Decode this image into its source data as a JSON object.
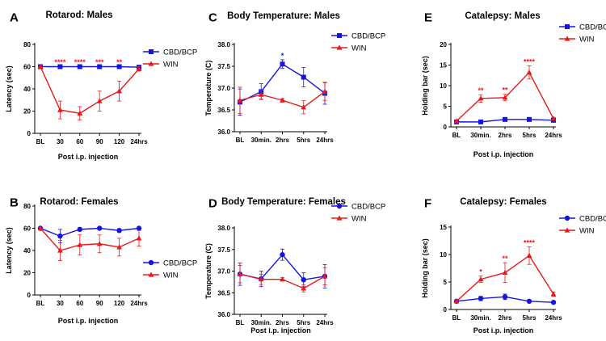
{
  "colors": {
    "blue": "#1515e0",
    "red": "#e8191c",
    "axis": "#000000"
  },
  "panels": [
    {
      "letter": "A",
      "title": "Rotarod: Males",
      "chart_data": {
        "type": "line",
        "categories": [
          "BL",
          "30",
          "60",
          "90",
          "120",
          "24hrs"
        ],
        "xlabel": "Post i.p. injection",
        "ylabel": "Latency (sec)",
        "ylim": [
          0,
          80
        ],
        "yticks": [
          "0",
          "20",
          "40",
          "60",
          "80"
        ],
        "legend_position": "right",
        "series": [
          {
            "name": "CBD/BCP",
            "marker": "square",
            "color": "#1515e0",
            "values": [
              60,
              60,
              60,
              60,
              60,
              59.5
            ],
            "err": [
              0.3,
              0.3,
              0.3,
              0.3,
              0.3,
              0.5
            ]
          },
          {
            "name": "WIN",
            "marker": "triangle",
            "color": "#e8191c",
            "values": [
              60,
              21,
              18,
              29,
              38,
              58
            ],
            "err": [
              0.3,
              8,
              6,
              9,
              9,
              2
            ]
          }
        ],
        "annotations": [
          {
            "index": 1,
            "text": "****"
          },
          {
            "index": 2,
            "text": "****"
          },
          {
            "index": 3,
            "text": "***"
          },
          {
            "index": 4,
            "text": "**"
          }
        ]
      }
    },
    {
      "letter": "B",
      "title": "Rotarod: Females",
      "chart_data": {
        "type": "line",
        "categories": [
          "BL",
          "30",
          "60",
          "90",
          "120",
          "24hrs"
        ],
        "xlabel": "Post i.p. injection",
        "ylabel": "Latency (sec)",
        "ylim": [
          0,
          80
        ],
        "yticks": [
          "0",
          "20",
          "40",
          "60",
          "80"
        ],
        "legend_position": "bottom-right",
        "series": [
          {
            "name": "CBD/BCP",
            "marker": "circle",
            "color": "#1515e0",
            "values": [
              60,
              53,
              59,
              60,
              58,
              60
            ],
            "err": [
              0.5,
              6,
              1.5,
              1,
              1.5,
              1
            ]
          },
          {
            "name": "WIN",
            "marker": "triangle",
            "color": "#e8191c",
            "values": [
              60,
              40,
              45,
              46,
              43,
              51
            ],
            "err": [
              0.5,
              9,
              9,
              8,
              8,
              7
            ]
          }
        ],
        "annotations": []
      }
    },
    {
      "letter": "C",
      "title": "Body Temperature: Males",
      "chart_data": {
        "type": "line",
        "categories": [
          "BL",
          "30min.",
          "2hrs",
          "5hrs",
          "24hrs"
        ],
        "xlabel": "",
        "ylabel": "Temperature (C)",
        "ylim": [
          36.0,
          38.0
        ],
        "yticks": [
          "36.0",
          "36.5",
          "37.0",
          "37.5",
          "38.0"
        ],
        "legend_position": "top-right",
        "series": [
          {
            "name": "CBD/BCP",
            "marker": "square",
            "color": "#1515e0",
            "values": [
              36.68,
              36.92,
              37.55,
              37.25,
              36.88
            ],
            "err": [
              0.3,
              0.18,
              0.1,
              0.22,
              0.25
            ]
          },
          {
            "name": "WIN",
            "marker": "triangle",
            "color": "#e8191c",
            "values": [
              36.72,
              36.85,
              36.72,
              36.56,
              36.92
            ],
            "err": [
              0.3,
              0.1,
              0.04,
              0.15,
              0.2
            ]
          }
        ],
        "annotations": [
          {
            "index": 2,
            "text": "*"
          }
        ]
      }
    },
    {
      "letter": "D",
      "title": "Body Temperature: Females",
      "chart_data": {
        "type": "line",
        "categories": [
          "BL",
          "30min.",
          "2hrs",
          "5hrs",
          "24hrs"
        ],
        "xlabel": "Post i.p. injection",
        "ylabel": "Temperature (C)",
        "ylim": [
          36.0,
          38.0
        ],
        "yticks": [
          "36.0",
          "36.5",
          "37.0",
          "37.5",
          "38.0"
        ],
        "legend_position": "top-right",
        "series": [
          {
            "name": "CBD/BCP",
            "marker": "circle",
            "color": "#1515e0",
            "values": [
              36.93,
              36.82,
              37.38,
              36.8,
              36.88
            ],
            "err": [
              0.26,
              0.18,
              0.13,
              0.16,
              0.27
            ]
          },
          {
            "name": "WIN",
            "marker": "triangle",
            "color": "#e8191c",
            "values": [
              36.93,
              36.81,
              36.81,
              36.6,
              36.88
            ],
            "err": [
              0.2,
              0.12,
              0.04,
              0.08,
              0.2
            ]
          }
        ],
        "annotations": []
      }
    },
    {
      "letter": "E",
      "title": "Catalepsy: Males",
      "chart_data": {
        "type": "line",
        "categories": [
          "BL",
          "30min.",
          "2hrs",
          "5hrs",
          "24hrs"
        ],
        "xlabel": "Post i.p. injection",
        "ylabel": "Holding bar (sec)",
        "ylim": [
          0,
          20
        ],
        "yticks": [
          "0",
          "5",
          "10",
          "15",
          "20"
        ],
        "legend_position": "top-right",
        "series": [
          {
            "name": "CBD/BCP",
            "marker": "square",
            "color": "#1515e0",
            "values": [
              1.2,
              1.2,
              1.8,
              1.8,
              1.6
            ],
            "err": [
              0.3,
              0.3,
              0.3,
              0.3,
              0.3
            ]
          },
          {
            "name": "WIN",
            "marker": "triangle",
            "color": "#e8191c",
            "values": [
              1.4,
              6.9,
              7.1,
              13.2,
              2.0
            ],
            "err": [
              0.3,
              0.9,
              0.8,
              1.6,
              0.3
            ]
          }
        ],
        "annotations": [
          {
            "index": 1,
            "text": "**"
          },
          {
            "index": 2,
            "text": "**"
          },
          {
            "index": 3,
            "text": "****"
          }
        ]
      }
    },
    {
      "letter": "F",
      "title": "Catalepsy: Females",
      "chart_data": {
        "type": "line",
        "categories": [
          "BL",
          "30min.",
          "2hrs",
          "5hrs",
          "24hrs"
        ],
        "xlabel": "Post i.p. injection",
        "ylabel": "Holding bar (sec)",
        "ylim": [
          0,
          15
        ],
        "yticks": [
          "0",
          "5",
          "10",
          "15"
        ],
        "legend_position": "top-right",
        "series": [
          {
            "name": "CBD/BCP",
            "marker": "circle",
            "color": "#1515e0",
            "values": [
              1.5,
              2.0,
              2.3,
              1.5,
              1.3
            ],
            "err": [
              0.2,
              0.4,
              0.5,
              0.2,
              0.2
            ]
          },
          {
            "name": "WIN",
            "marker": "triangle",
            "color": "#e8191c",
            "values": [
              1.5,
              5.5,
              6.7,
              9.8,
              2.8
            ],
            "err": [
              0.2,
              0.6,
              1.8,
              1.6,
              0.4
            ]
          }
        ],
        "annotations": [
          {
            "index": 1,
            "text": "*"
          },
          {
            "index": 2,
            "text": "**"
          },
          {
            "index": 3,
            "text": "****"
          }
        ]
      }
    }
  ]
}
